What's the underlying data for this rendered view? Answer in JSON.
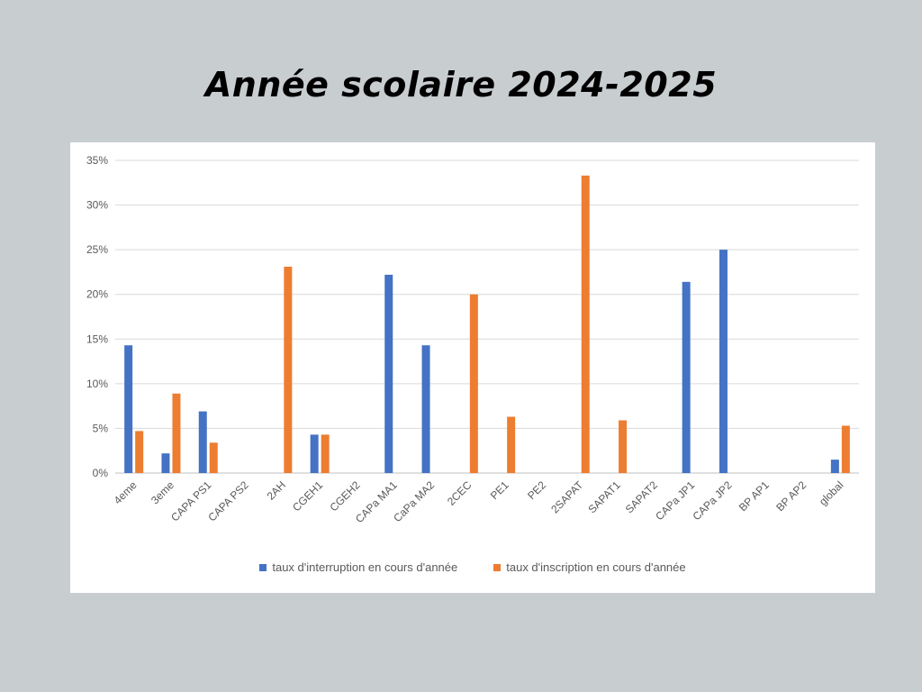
{
  "slide": {
    "title": "Année scolaire 2024-2025"
  },
  "colors": {
    "series1": "#4472c4",
    "series2": "#ed7d31",
    "grid": "#d9d9d9",
    "axis": "#bfbfbf",
    "text": "#595959"
  },
  "chart_data": {
    "type": "bar",
    "title": "",
    "xlabel": "",
    "ylabel": "",
    "ylim": [
      0,
      35
    ],
    "yticks": [
      "0%",
      "5%",
      "10%",
      "15%",
      "20%",
      "25%",
      "30%",
      "35%"
    ],
    "grid": true,
    "legend_position": "bottom",
    "categories": [
      "4eme",
      "3eme",
      "CAPA PS1",
      "CAPA PS2",
      "2AH",
      "CGEH1",
      "CGEH2",
      "CAPa MA1",
      "CaPa MA2",
      "2CEC",
      "PE1",
      "PE2",
      "2SAPAT",
      "SAPAT1",
      "SAPAT2",
      "CAPa JP1",
      "CAPa JP2",
      "BP AP1",
      "BP AP2",
      "global"
    ],
    "series": [
      {
        "name": "taux d'interruption en cours d'année",
        "values": [
          14.3,
          2.2,
          6.9,
          0,
          0,
          4.3,
          0,
          22.2,
          14.3,
          0,
          0,
          0,
          0,
          0,
          0,
          21.4,
          25.0,
          0,
          0,
          1.5
        ]
      },
      {
        "name": "taux d'inscription en cours d'année",
        "values": [
          4.7,
          8.9,
          3.4,
          0,
          23.1,
          4.3,
          0,
          0,
          0,
          20.0,
          6.3,
          0,
          33.3,
          5.9,
          0,
          0,
          0,
          0,
          0,
          5.3
        ]
      }
    ]
  }
}
